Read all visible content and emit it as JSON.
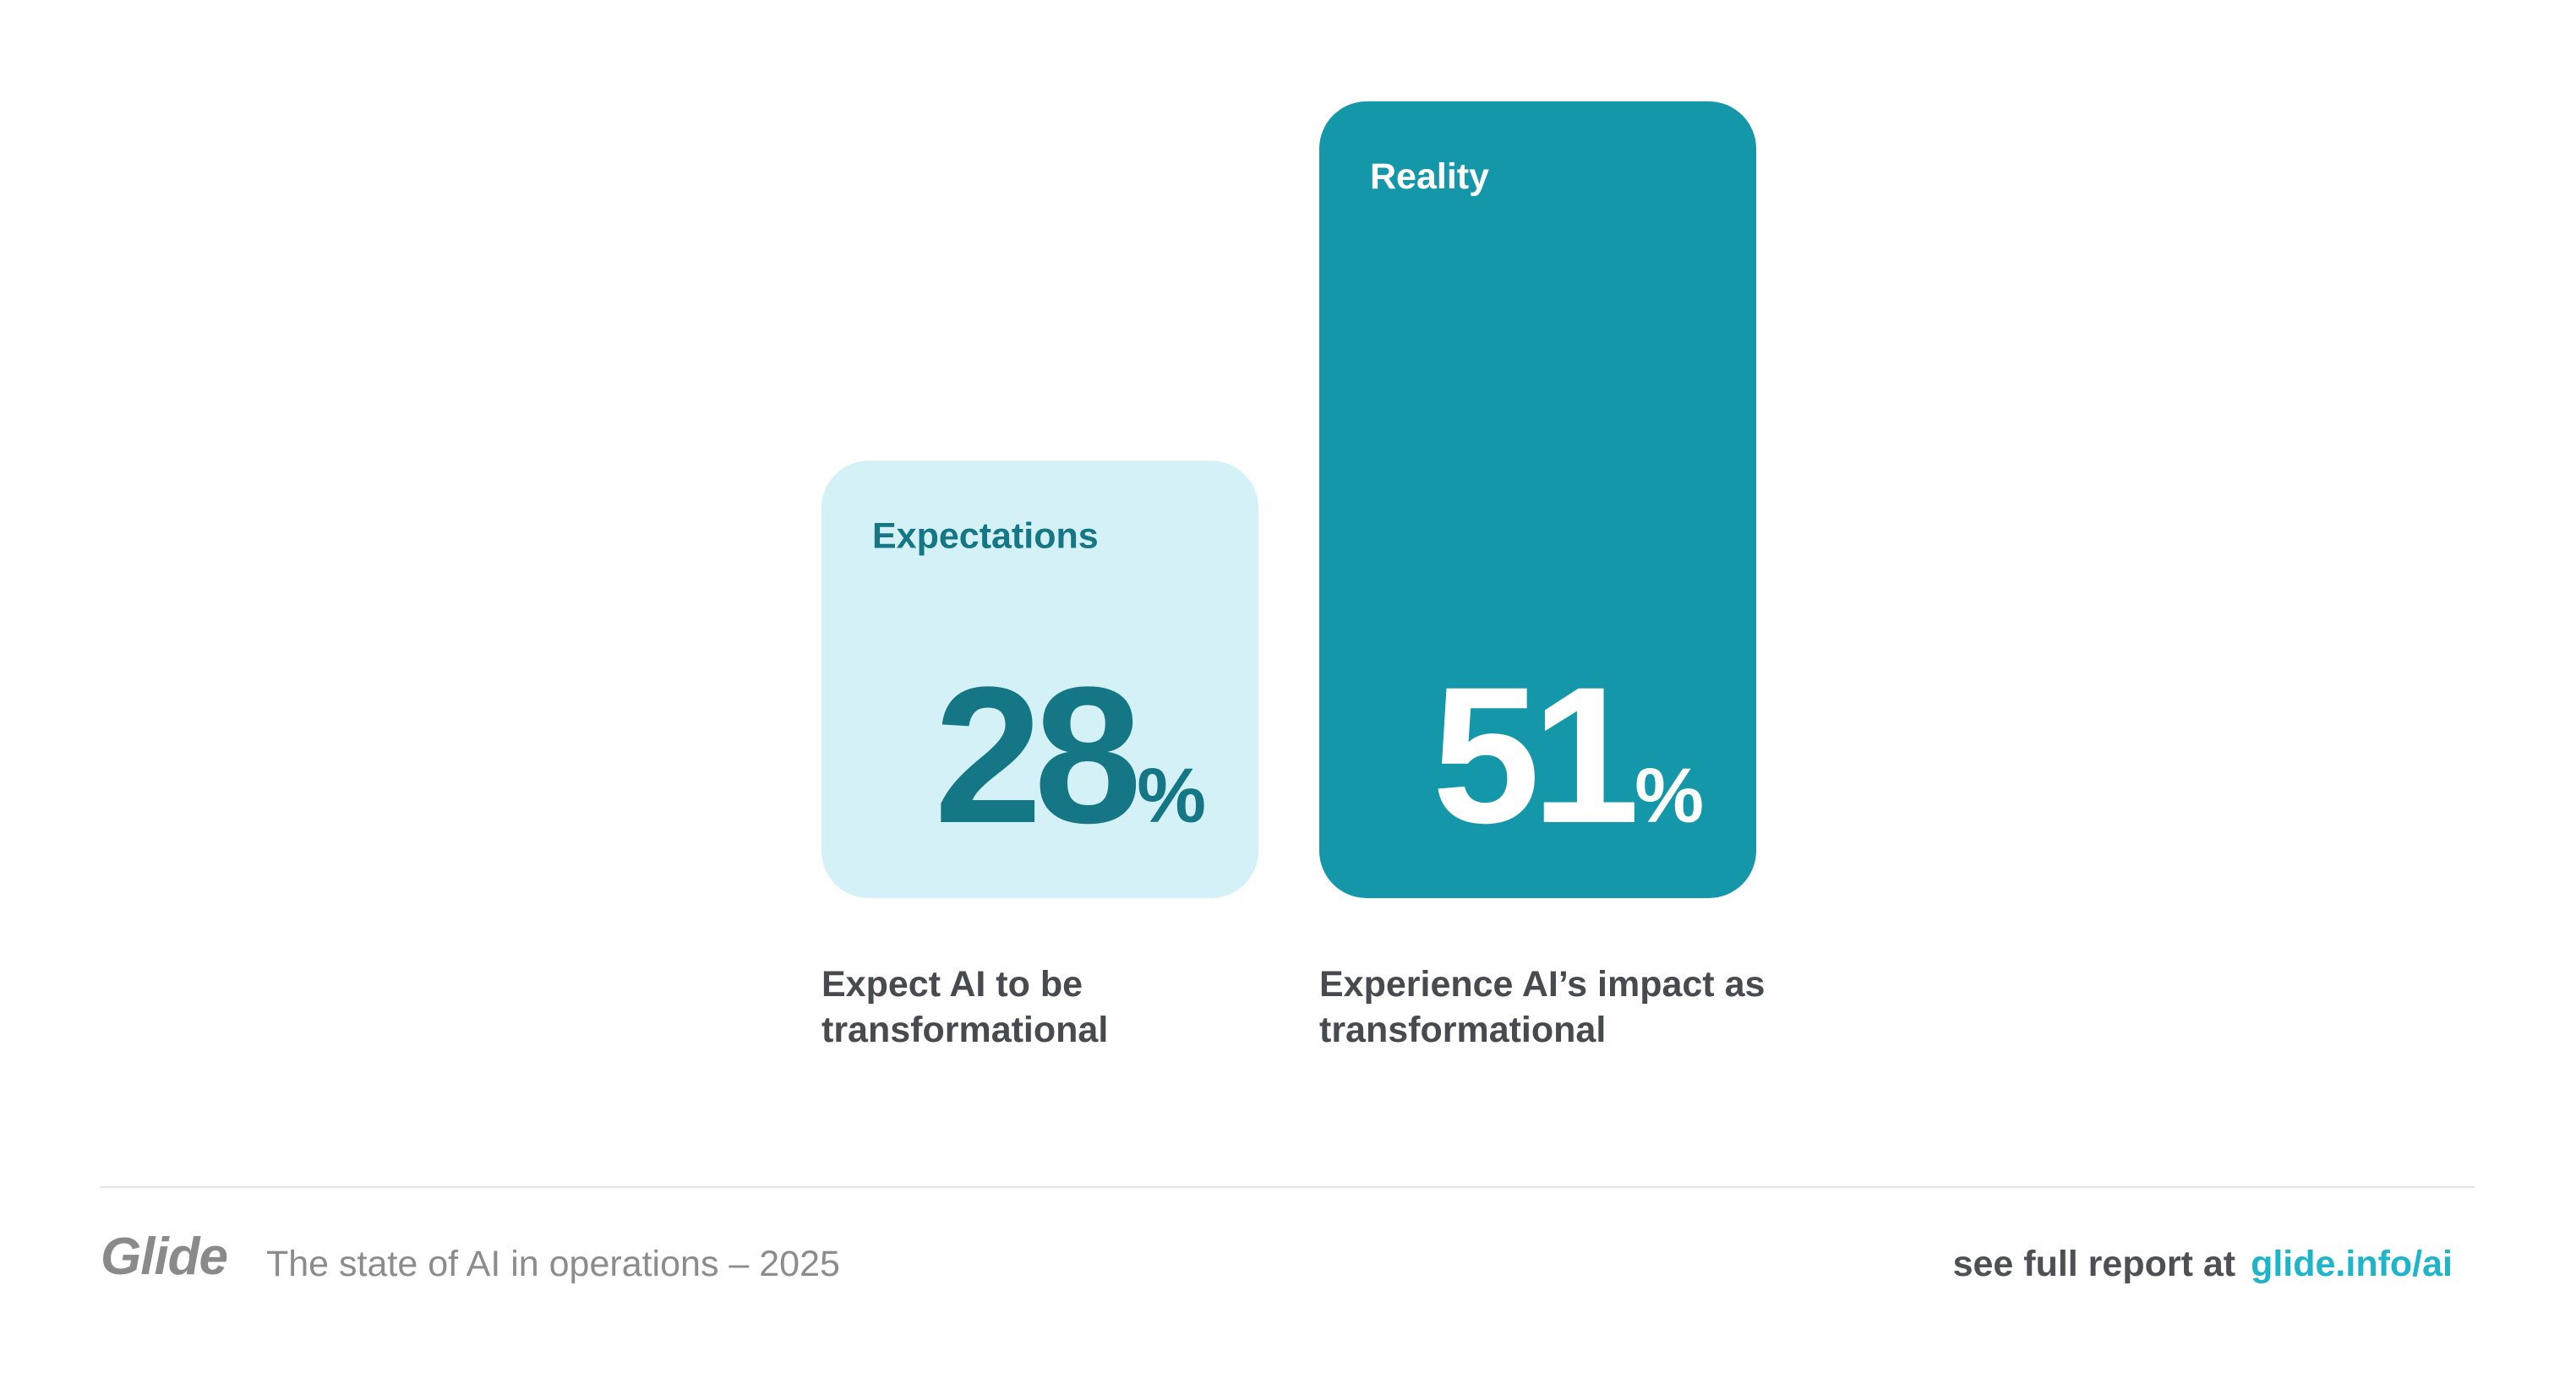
{
  "chart_data": {
    "type": "bar",
    "categories": [
      "Expectations",
      "Reality"
    ],
    "values": [
      28,
      51
    ],
    "value_labels": [
      "28%",
      "51%"
    ],
    "descriptions": [
      "Expect AI to be transformational",
      "Experience AI’s impact as transformational"
    ],
    "colors": [
      "#d3f1f6",
      "#1597aa"
    ],
    "label_colors": [
      "#157785",
      "#ffffff"
    ]
  },
  "footer": {
    "brand": "Glide",
    "subtitle": "The state of AI in operations – 2025",
    "cta": "see full report at",
    "link": "glide.info/ai"
  }
}
